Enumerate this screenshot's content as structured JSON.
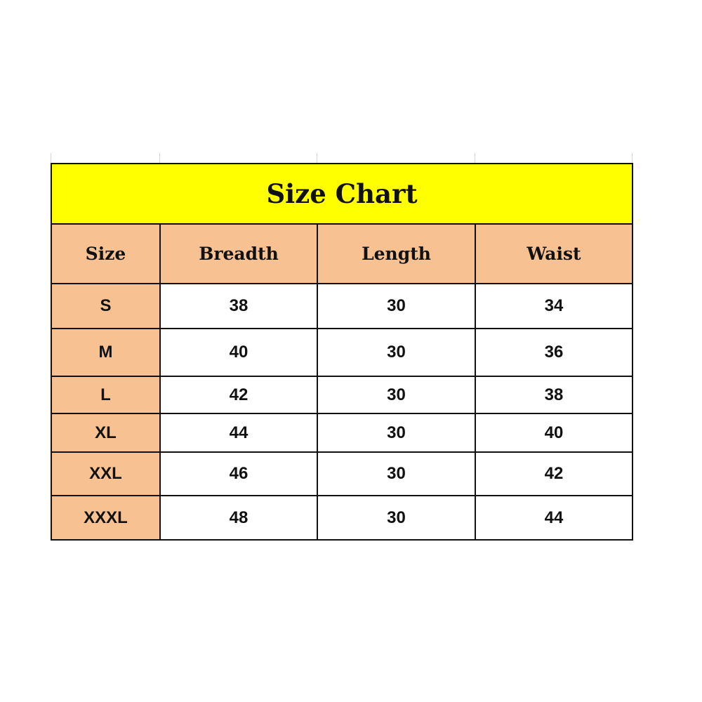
{
  "title": "Size Chart",
  "colors": {
    "title_bg": "#ffff00",
    "header_bg": "#f8c192",
    "cell_bg": "#ffffff"
  },
  "headers": [
    "Size",
    "Breadth",
    "Length",
    "Waist"
  ],
  "rows": [
    [
      "S",
      "38",
      "30",
      "34"
    ],
    [
      "M",
      "40",
      "30",
      "36"
    ],
    [
      "L",
      "42",
      "30",
      "38"
    ],
    [
      "XL",
      "44",
      "30",
      "40"
    ],
    [
      "XXL",
      "46",
      "30",
      "42"
    ],
    [
      "XXXL",
      "48",
      "30",
      "44"
    ]
  ]
}
